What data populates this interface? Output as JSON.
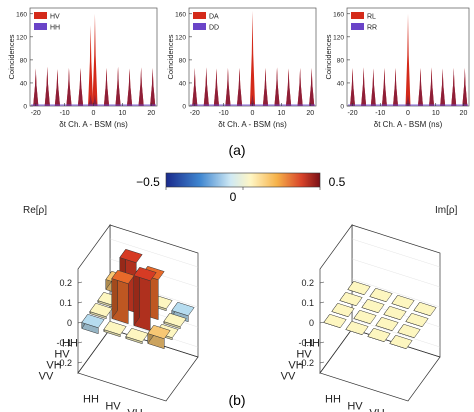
{
  "colors": {
    "red": "#d42a1a",
    "purple": "#6a44c8",
    "overlap": "#8a1f3a",
    "floor": "#fdf6c0"
  },
  "panel_a_label": "(a)",
  "panel_b_label": "(b)",
  "colorbar": {
    "min_label": "−0.5",
    "zero_label": "0",
    "max_label": "0.5"
  },
  "chart_data": [
    {
      "type": "bar",
      "id": "hist-1",
      "legend": [
        "HV",
        "HH"
      ],
      "ylabel": "Coincidences",
      "xlabel": "δt Ch. A - BSM (ns)",
      "xlim": [
        -22,
        22
      ],
      "ylim": [
        0,
        170
      ],
      "xticks": [
        "-20",
        "-10",
        "0",
        "10",
        "20"
      ],
      "yticks": [
        "0",
        "40",
        "80",
        "120",
        "160"
      ],
      "peaks": {
        "x": [
          -20,
          -16,
          -12.5,
          -8.5,
          -4.5,
          -1,
          0.5,
          4.5,
          8.5,
          12.5,
          16.5,
          20.5
        ],
        "series1": [
          65,
          68,
          64,
          66,
          66,
          140,
          160,
          66,
          68,
          65,
          67,
          66
        ],
        "series2": [
          65,
          68,
          64,
          66,
          66,
          20,
          20,
          66,
          68,
          65,
          67,
          66
        ]
      }
    },
    {
      "type": "bar",
      "id": "hist-2",
      "legend": [
        "DA",
        "DD"
      ],
      "ylabel": "Coincidences",
      "xlabel": "δt Ch. A - BSM (ns)",
      "xlim": [
        -22,
        22
      ],
      "ylim": [
        0,
        170
      ],
      "xticks": [
        "-20",
        "-10",
        "0",
        "10",
        "20"
      ],
      "yticks": [
        "0",
        "40",
        "80",
        "120",
        "160"
      ],
      "peaks": {
        "x": [
          -20,
          -16,
          -12.5,
          -8.5,
          -4.5,
          0,
          4.5,
          8.5,
          12.5,
          16.5,
          20.5
        ],
        "series1": [
          66,
          67,
          65,
          66,
          66,
          165,
          66,
          67,
          65,
          66,
          66
        ],
        "series2": [
          66,
          67,
          65,
          66,
          66,
          20,
          66,
          67,
          65,
          66,
          66
        ]
      }
    },
    {
      "type": "bar",
      "id": "hist-3",
      "legend": [
        "RL",
        "RR"
      ],
      "ylabel": "Coincidences",
      "xlabel": "δt Ch. A - BSM (ns)",
      "xlim": [
        -22,
        22
      ],
      "ylim": [
        0,
        170
      ],
      "xticks": [
        "-20",
        "-10",
        "0",
        "10",
        "20"
      ],
      "yticks": [
        "0",
        "40",
        "80",
        "120",
        "160"
      ],
      "peaks": {
        "x": [
          -20,
          -16,
          -12.5,
          -8.5,
          -4.5,
          0,
          4.5,
          8.5,
          12.5,
          16.5,
          20.5
        ],
        "series1": [
          66,
          67,
          65,
          66,
          66,
          160,
          66,
          67,
          65,
          66,
          66
        ],
        "series2": [
          66,
          67,
          65,
          66,
          66,
          20,
          66,
          67,
          65,
          66,
          66
        ]
      }
    },
    {
      "type": "bar3d",
      "id": "re-rho",
      "title": "Re[ρ]",
      "zlim": [
        -0.25,
        0.27
      ],
      "zticks": [
        "0.2",
        "0.1",
        "0",
        "-0.1",
        "-0.2"
      ],
      "rows": [
        "HH",
        "HV",
        "VH",
        "VV"
      ],
      "cols": [
        "HH",
        "HV",
        "VH",
        "VV"
      ],
      "values": [
        [
          0.05,
          -0.01,
          -0.01,
          -0.03
        ],
        [
          -0.01,
          0.25,
          0.2,
          -0.01
        ],
        [
          -0.01,
          0.2,
          0.25,
          -0.01
        ],
        [
          -0.03,
          -0.01,
          -0.01,
          0.05
        ]
      ]
    },
    {
      "type": "bar3d",
      "id": "im-rho",
      "title": "Im[ρ]",
      "zlim": [
        -0.25,
        0.27
      ],
      "zticks": [
        "0.2",
        "0.1",
        "0",
        "-0.1",
        "-0.2"
      ],
      "rows": [
        "HH",
        "HV",
        "VH",
        "VV"
      ],
      "cols": [
        "HH",
        "HV",
        "VH",
        "VV"
      ],
      "values": [
        [
          0,
          0,
          0,
          0
        ],
        [
          0,
          0,
          0,
          0
        ],
        [
          0,
          0,
          0,
          0
        ],
        [
          0,
          0,
          0,
          0
        ]
      ]
    }
  ]
}
